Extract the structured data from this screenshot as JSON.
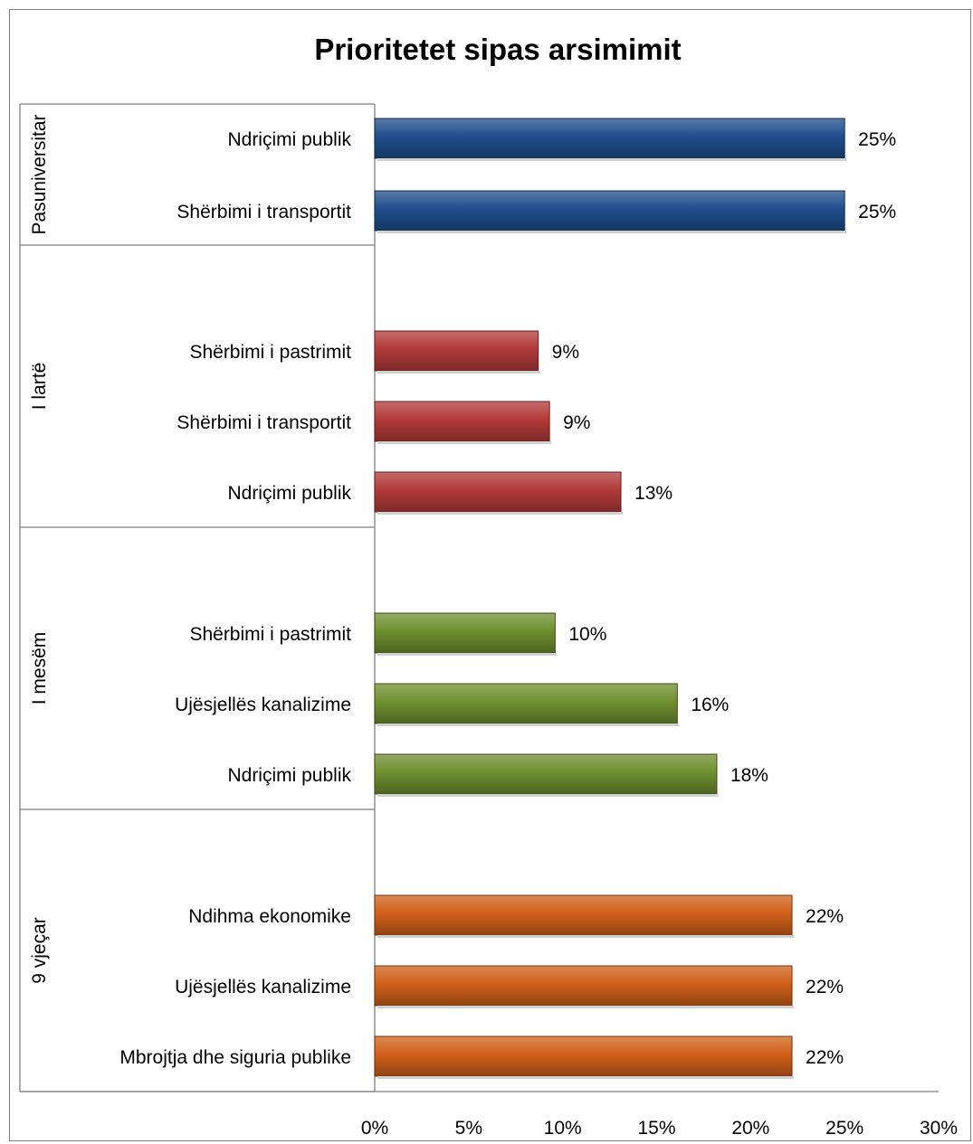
{
  "chart_data": {
    "type": "bar",
    "orientation": "horizontal",
    "title": "Prioritetet sipas arsimimit",
    "xlim": [
      0,
      30
    ],
    "xticks": [
      "0%",
      "5%",
      "10%",
      "15%",
      "20%",
      "25%",
      "30%"
    ],
    "grid": false,
    "legend": "none",
    "groups": [
      {
        "name": "Pasuniversitar",
        "color": "#1f4e8c",
        "bars": [
          {
            "label": "Ndriçimi publik",
            "value": 25,
            "display": "25%"
          },
          {
            "label": "Shërbimi i transportit",
            "value": 25,
            "display": "25%"
          }
        ]
      },
      {
        "name": "I lartë",
        "color": "#b23a3a",
        "bars": [
          {
            "label": "Shërbimi i pastrimit",
            "value": 8.7,
            "display": "9%"
          },
          {
            "label": "Shërbimi i transportit",
            "value": 9.3,
            "display": "9%"
          },
          {
            "label": "Ndriçimi publik",
            "value": 13.1,
            "display": "13%"
          }
        ]
      },
      {
        "name": "I mesëm",
        "color": "#6f8f2f",
        "bars": [
          {
            "label": "Shërbimi i pastrimit",
            "value": 9.6,
            "display": "10%"
          },
          {
            "label": "Ujësjellës kanalizime",
            "value": 16.1,
            "display": "16%"
          },
          {
            "label": "Ndriçimi publik",
            "value": 18.2,
            "display": "18%"
          }
        ]
      },
      {
        "name": "9 vjeçar",
        "color": "#d0601a",
        "bars": [
          {
            "label": "Ndihma ekonomike",
            "value": 22.2,
            "display": "22%"
          },
          {
            "label": "Ujësjellës kanalizime",
            "value": 22.2,
            "display": "22%"
          },
          {
            "label": "Mbrojtja dhe siguria publike",
            "value": 22.2,
            "display": "22%"
          }
        ]
      }
    ]
  }
}
